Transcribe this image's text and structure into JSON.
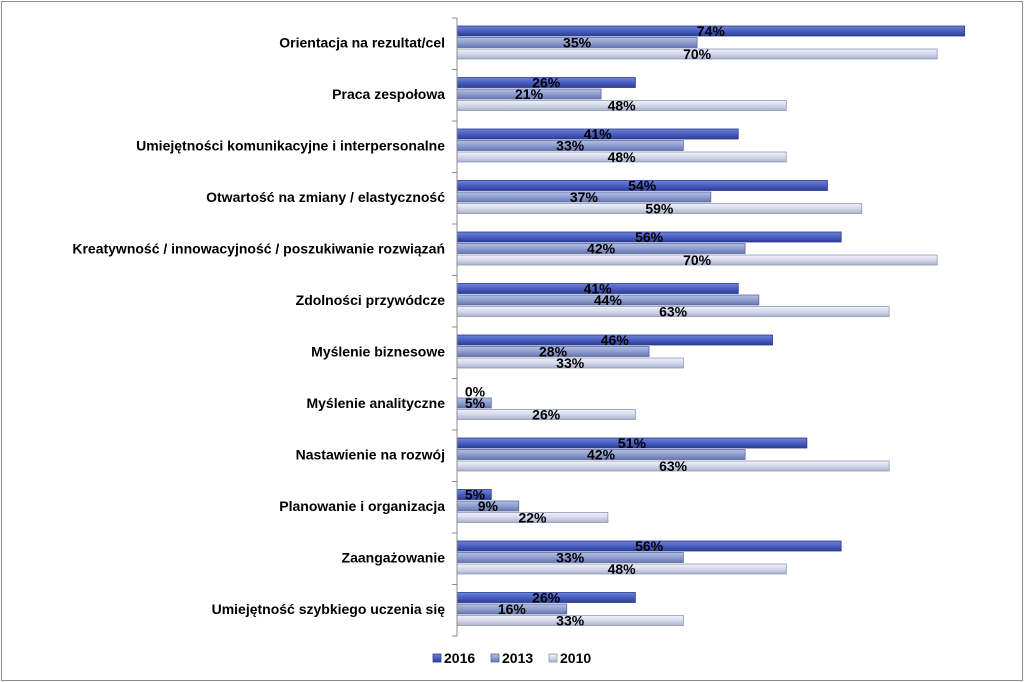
{
  "chart_data": {
    "type": "bar",
    "orientation": "horizontal",
    "categories": [
      "Orientacja na rezultat/cel",
      "Praca zespołowa",
      "Umiejętności komunikacyjne i interpersonalne",
      "Otwartość na zmiany / elastyczność",
      "Kreatywność / innowacyjność / poszukiwanie rozwiązań",
      "Zdolności przywódcze",
      "Myślenie biznesowe",
      "Myślenie analityczne",
      "Nastawienie na rozwój",
      "Planowanie i organizacja",
      "Zaangażowanie",
      "Umiejętność szybkiego uczenia się"
    ],
    "series": [
      {
        "name": "2016",
        "color": "#4a5fc1",
        "values": [
          74,
          26,
          41,
          54,
          56,
          41,
          46,
          0,
          51,
          5,
          56,
          26
        ]
      },
      {
        "name": "2013",
        "color": "#8e9ed0",
        "values": [
          35,
          21,
          33,
          37,
          42,
          44,
          28,
          5,
          42,
          9,
          33,
          16
        ]
      },
      {
        "name": "2010",
        "color": "#d4d9ea",
        "values": [
          70,
          48,
          48,
          59,
          70,
          63,
          33,
          26,
          63,
          22,
          48,
          33
        ]
      }
    ],
    "value_suffix": "%",
    "xlim": [
      0,
      75
    ],
    "grid": false,
    "legend_position": "bottom",
    "title": "",
    "xlabel": "",
    "ylabel": ""
  }
}
